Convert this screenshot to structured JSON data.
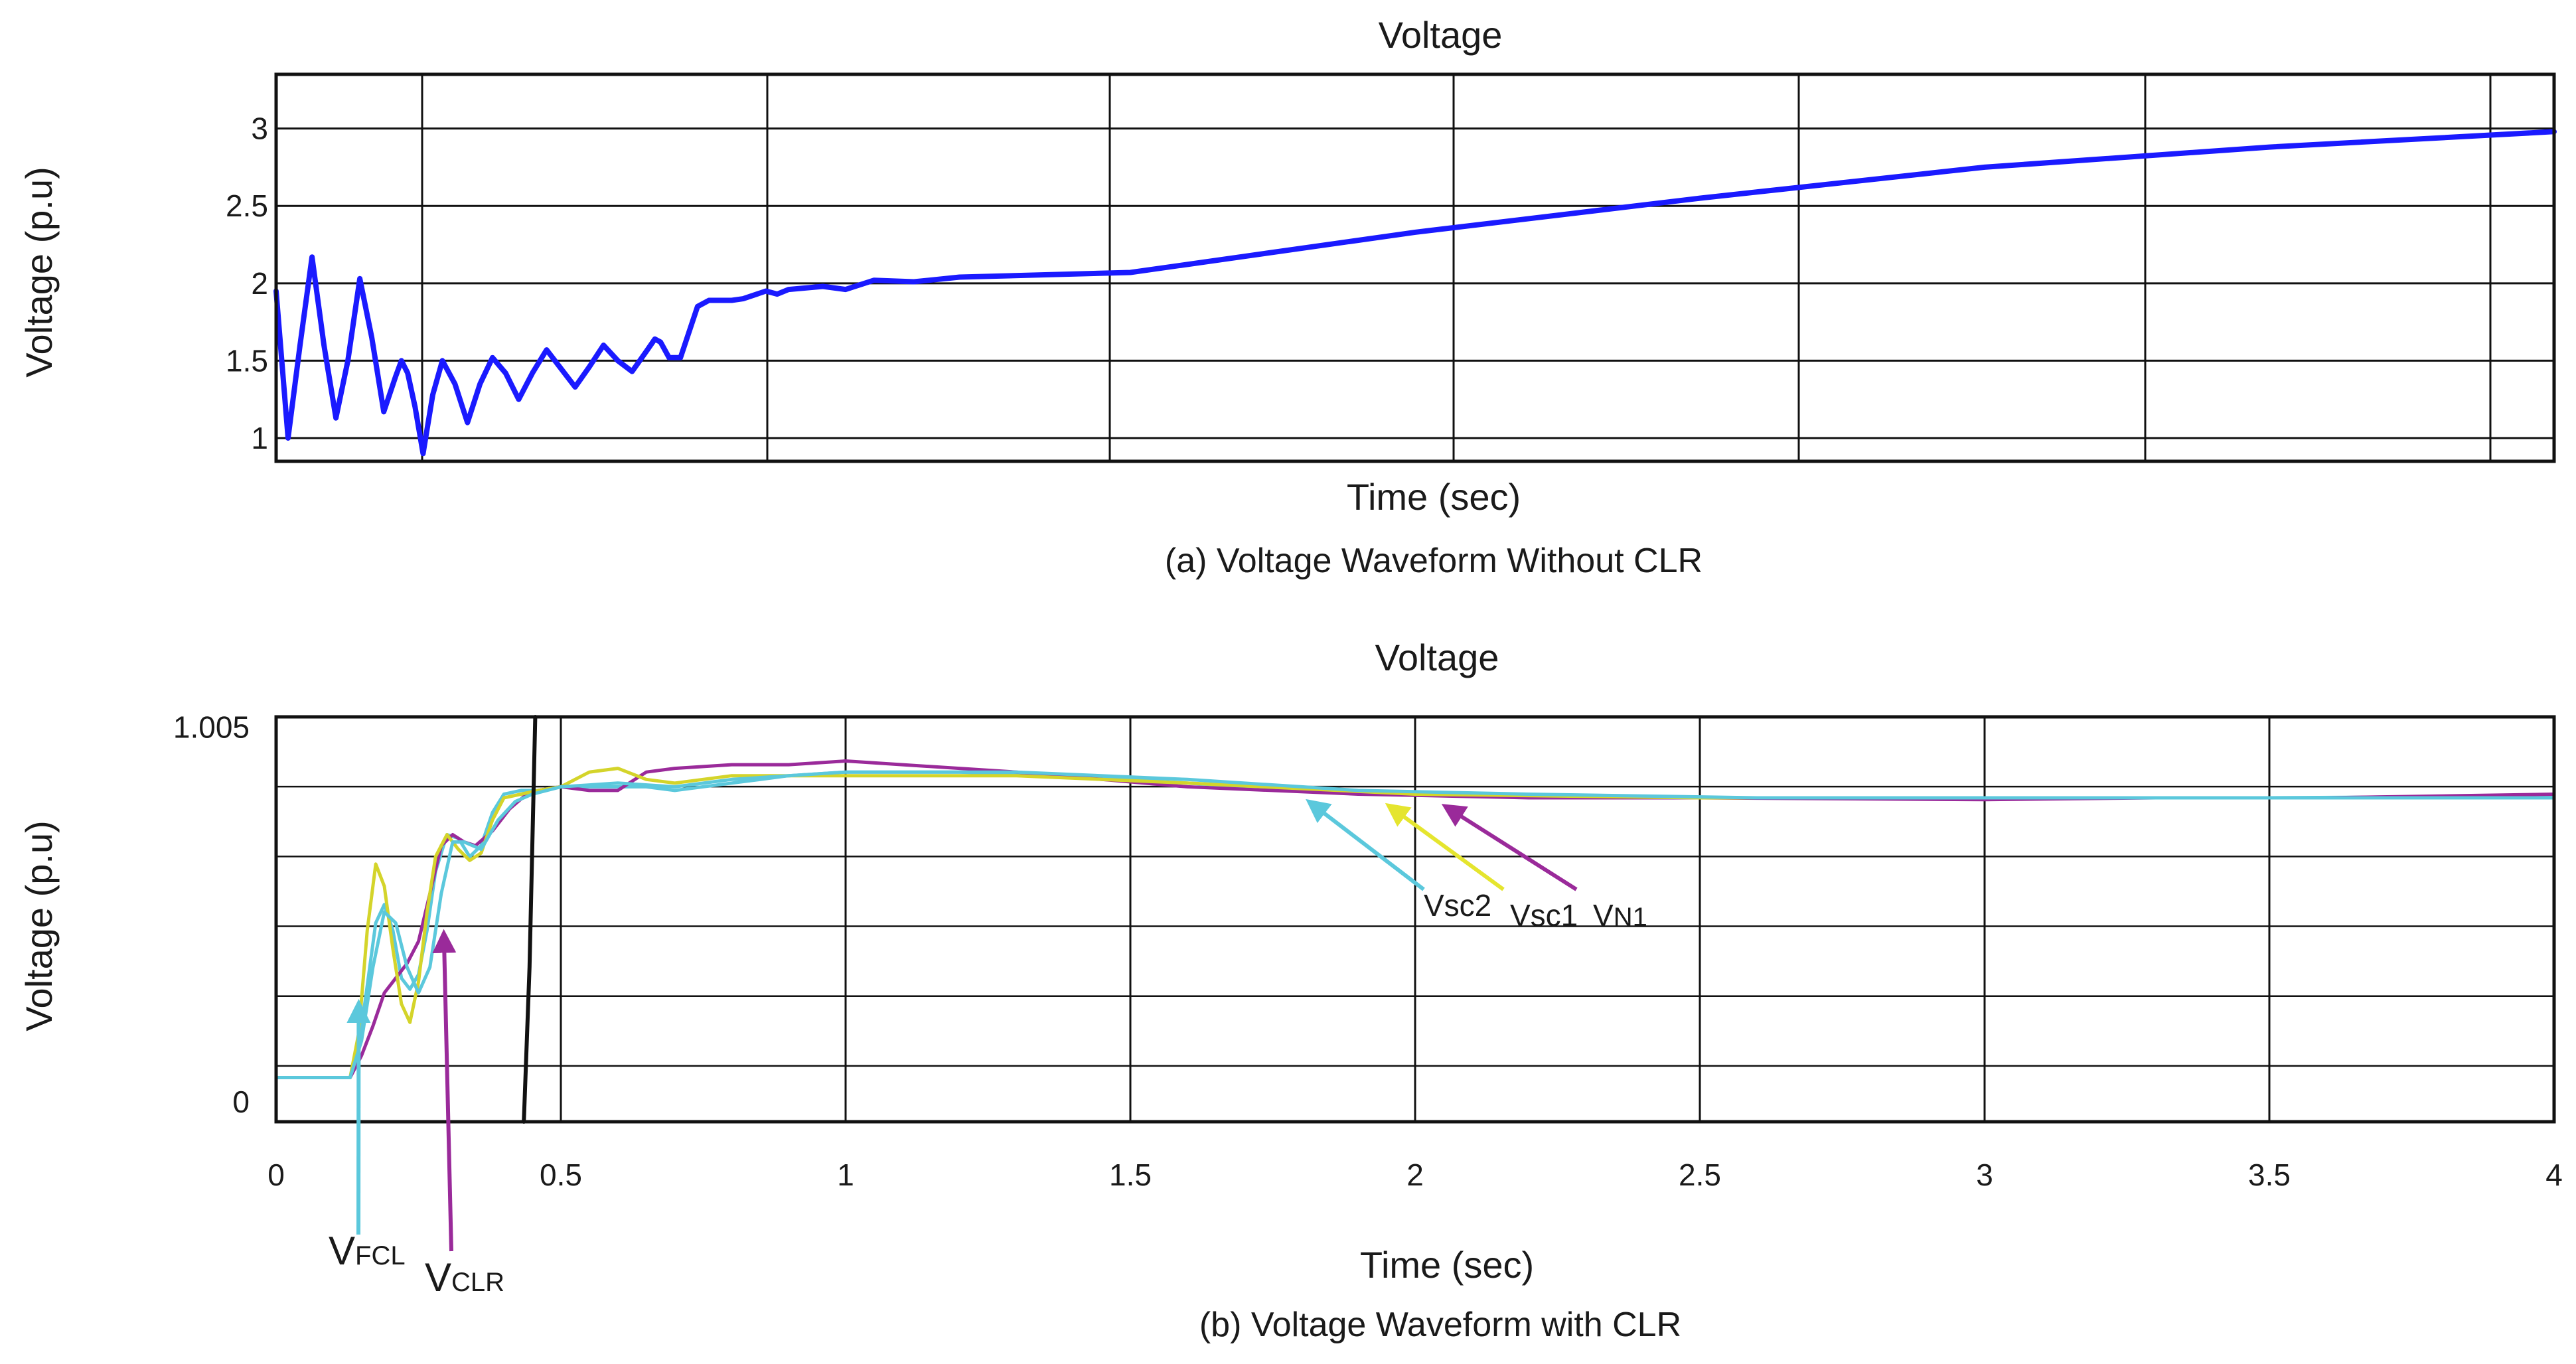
{
  "chart_data": [
    {
      "id": "top",
      "type": "line",
      "title": "Voltage",
      "xlabel": "Time (sec)",
      "ylabel": "Voltage (p.u)",
      "caption": "(a) Voltage Waveform Without CLR",
      "xlim": [
        0,
        4
      ],
      "ylim": [
        0.85,
        3.35
      ],
      "yticks": [
        1,
        1.5,
        2,
        2.5,
        3
      ],
      "ytick_labels": [
        "1",
        "1.5",
        "2",
        "2.5",
        "3"
      ],
      "xticks_shown": false,
      "grid": true,
      "series": [
        {
          "name": "Voltage",
          "color": "#1a1aff",
          "x": [
            0.0,
            0.021,
            0.042,
            0.063,
            0.084,
            0.105,
            0.126,
            0.147,
            0.168,
            0.189,
            0.21,
            0.22,
            0.231,
            0.244,
            0.258,
            0.275,
            0.292,
            0.314,
            0.336,
            0.358,
            0.38,
            0.403,
            0.426,
            0.45,
            0.475,
            0.5,
            0.525,
            0.55,
            0.575,
            0.6,
            0.625,
            0.65,
            0.665,
            0.675,
            0.69,
            0.71,
            0.74,
            0.76,
            0.78,
            0.8,
            0.82,
            0.86,
            0.88,
            0.9,
            0.96,
            1.0,
            1.05,
            1.12,
            1.2,
            1.5,
            2.0,
            2.5,
            3.0,
            3.5,
            4.0
          ],
          "y": [
            1.95,
            1.0,
            1.6,
            2.17,
            1.6,
            1.13,
            1.5,
            2.03,
            1.65,
            1.17,
            1.4,
            1.5,
            1.42,
            1.2,
            0.9,
            1.28,
            1.5,
            1.35,
            1.1,
            1.35,
            1.52,
            1.42,
            1.25,
            1.42,
            1.57,
            1.45,
            1.33,
            1.46,
            1.6,
            1.5,
            1.43,
            1.56,
            1.64,
            1.62,
            1.52,
            1.52,
            1.85,
            1.89,
            1.89,
            1.89,
            1.9,
            1.95,
            1.93,
            1.96,
            1.98,
            1.96,
            2.02,
            2.01,
            2.04,
            2.07,
            2.33,
            2.55,
            2.75,
            2.88,
            2.98
          ]
        }
      ]
    },
    {
      "id": "bottom",
      "type": "line",
      "title": "Voltage",
      "xlabel": "Time (sec)",
      "ylabel": "Voltage (p.u)",
      "caption": "(b) Voltage Waveform with CLR",
      "xlim": [
        0,
        4
      ],
      "ylim": [
        -0.02,
        1.08
      ],
      "yticks": [
        0,
        1.005
      ],
      "ytick_labels": [
        "0",
        "1.005"
      ],
      "xticks": [
        0,
        0.5,
        1,
        1.5,
        2,
        2.5,
        3,
        3.5,
        4
      ],
      "xtick_labels": [
        "0",
        "0.5",
        "1",
        "1.5",
        "2",
        "2.5",
        "3",
        "3.5",
        "4"
      ],
      "grid": true,
      "series": [
        {
          "name": "VFCL",
          "color": "#5bc8dc",
          "x": [
            0,
            0.13,
            0.145,
            0.16,
            0.175,
            0.19,
            0.205,
            0.22,
            0.235,
            0.25,
            0.265,
            0.28,
            0.3,
            0.32,
            0.34,
            0.36,
            0.38,
            0.4,
            0.43,
            0.46,
            0.5,
            0.55,
            0.6,
            0.65,
            0.7,
            0.8,
            0.9,
            1.0,
            1.2,
            1.5,
            1.8,
            2.0,
            2.5,
            3.0,
            3.5,
            4.0
          ],
          "y": [
            0.1,
            0.1,
            0.18,
            0.35,
            0.52,
            0.57,
            0.5,
            0.37,
            0.34,
            0.38,
            0.5,
            0.66,
            0.76,
            0.75,
            0.7,
            0.73,
            0.82,
            0.87,
            0.88,
            0.88,
            0.89,
            0.89,
            0.89,
            0.89,
            0.88,
            0.9,
            0.92,
            0.93,
            0.93,
            0.91,
            0.88,
            0.87,
            0.86,
            0.86,
            0.86,
            0.865
          ]
        },
        {
          "name": "VCLR",
          "color": "#9a2a9a",
          "x": [
            0,
            0.13,
            0.15,
            0.17,
            0.19,
            0.21,
            0.23,
            0.25,
            0.27,
            0.29,
            0.31,
            0.33,
            0.35,
            0.38,
            0.41,
            0.44,
            0.46,
            0.5,
            0.55,
            0.6,
            0.65,
            0.7,
            0.8,
            0.9,
            1.0,
            1.1,
            1.3,
            1.6,
            1.9,
            2.2,
            2.5,
            3.0,
            3.3,
            3.6,
            4.0
          ],
          "y": [
            0.1,
            0.1,
            0.16,
            0.24,
            0.33,
            0.37,
            0.41,
            0.47,
            0.6,
            0.73,
            0.76,
            0.74,
            0.73,
            0.77,
            0.83,
            0.87,
            0.88,
            0.89,
            0.88,
            0.88,
            0.93,
            0.94,
            0.95,
            0.95,
            0.96,
            0.95,
            0.93,
            0.89,
            0.87,
            0.86,
            0.86,
            0.855,
            0.86,
            0.86,
            0.87
          ]
        },
        {
          "name": "Vsc1",
          "color": "#d4d42a",
          "x": [
            0,
            0.13,
            0.145,
            0.16,
            0.175,
            0.19,
            0.205,
            0.22,
            0.235,
            0.25,
            0.265,
            0.28,
            0.3,
            0.32,
            0.34,
            0.36,
            0.38,
            0.4,
            0.43,
            0.46,
            0.5,
            0.55,
            0.6,
            0.65,
            0.7,
            0.8,
            0.9,
            1.0,
            1.3,
            1.6,
            2.0,
            2.5,
            3.0,
            3.5,
            4.0
          ],
          "y": [
            0.1,
            0.1,
            0.22,
            0.5,
            0.68,
            0.62,
            0.45,
            0.3,
            0.25,
            0.36,
            0.55,
            0.7,
            0.76,
            0.72,
            0.69,
            0.71,
            0.8,
            0.86,
            0.87,
            0.88,
            0.89,
            0.93,
            0.94,
            0.91,
            0.9,
            0.92,
            0.92,
            0.92,
            0.92,
            0.9,
            0.87,
            0.86,
            0.86,
            0.86,
            0.86
          ]
        },
        {
          "name": "Vsc2",
          "color": "#5bc8dc",
          "x": [
            0,
            0.13,
            0.15,
            0.17,
            0.19,
            0.21,
            0.23,
            0.25,
            0.27,
            0.29,
            0.31,
            0.33,
            0.36,
            0.39,
            0.42,
            0.45,
            0.5,
            0.6,
            0.7,
            0.8,
            0.9,
            1.0,
            1.3,
            1.6,
            1.9,
            2.2,
            2.6,
            3.0,
            3.5,
            4.0
          ],
          "y": [
            0.1,
            0.1,
            0.2,
            0.4,
            0.55,
            0.52,
            0.4,
            0.33,
            0.4,
            0.6,
            0.74,
            0.74,
            0.72,
            0.8,
            0.85,
            0.87,
            0.89,
            0.9,
            0.89,
            0.91,
            0.92,
            0.93,
            0.93,
            0.91,
            0.88,
            0.87,
            0.86,
            0.86,
            0.86,
            0.86
          ]
        }
      ],
      "vertical_marker": {
        "color": "#111111",
        "x": [
          0.435,
          0.445,
          0.455
        ],
        "y": [
          -0.02,
          0.4,
          1.08
        ]
      },
      "annotations": [
        {
          "label": "V",
          "sub": "FCL",
          "color": "#5bc8dc",
          "arrow_to_x": 0.145,
          "arrow_to_y": 0.31
        },
        {
          "label": "V",
          "sub": "CLR",
          "color": "#9a2a9a",
          "arrow_to_x": 0.295,
          "arrow_to_y": 0.5
        },
        {
          "label": "Vsc2",
          "color": "#5bc8dc",
          "arrow_to_x": 1.83,
          "arrow_to_y": 0.87
        },
        {
          "label": "Vsc1",
          "color": "#e5e52e",
          "arrow_to_x": 1.97,
          "arrow_to_y": 0.86
        },
        {
          "label": "V",
          "sub": "N1",
          "color": "#9a2a9a",
          "arrow_to_x": 2.07,
          "arrow_to_y": 0.86
        }
      ]
    }
  ]
}
